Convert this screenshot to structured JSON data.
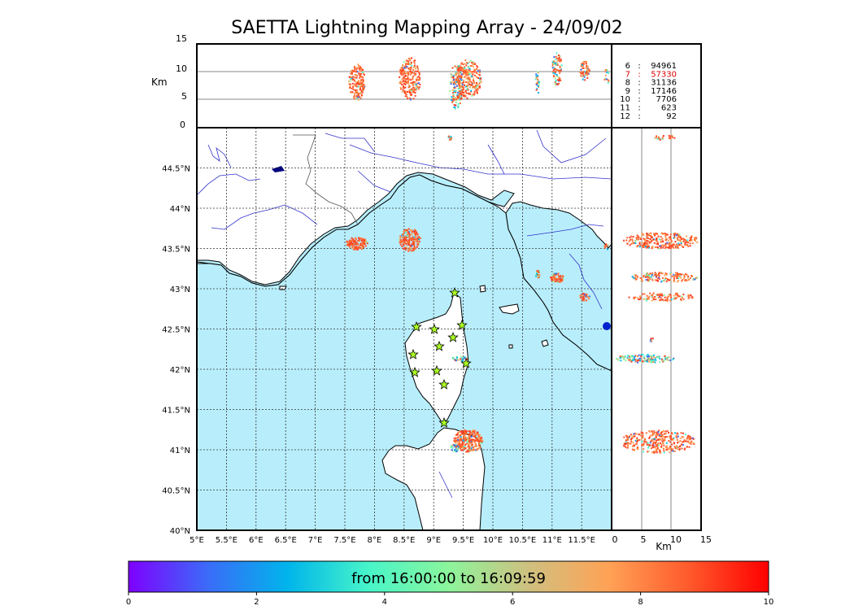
{
  "title": "SAETTA Lightning Mapping Array - 24/09/02",
  "alt_axis": {
    "unit_label": "Km",
    "ticks": [
      "0",
      "5",
      "10",
      "15"
    ]
  },
  "map": {
    "lat_ticks": [
      "40°N",
      "40.5°N",
      "41°N",
      "41.5°N",
      "42°N",
      "42.5°N",
      "43°N",
      "43.5°N",
      "44°N",
      "44.5°N"
    ],
    "lon_ticks": [
      "5°E",
      "5.5°E",
      "6°E",
      "6.5°E",
      "7°E",
      "7.5°E",
      "8°E",
      "8.5°E",
      "9°E",
      "9.5°E",
      "10°E",
      "10.5°E",
      "11°E",
      "11.5°E"
    ],
    "sea_color": "#b8eefc",
    "land_color": "#ffffff",
    "river_color": "#3333cc",
    "station_color": "#aaff22",
    "stations_count": 12
  },
  "stations_legend": [
    {
      "label": "6",
      "count": "94961",
      "highlight": false
    },
    {
      "label": "7",
      "count": "57330",
      "highlight": true
    },
    {
      "label": "8",
      "count": "31136",
      "highlight": false
    },
    {
      "label": "9",
      "count": "17146",
      "highlight": false
    },
    {
      "label": "10",
      "count": "7706",
      "highlight": false
    },
    {
      "label": "11",
      "count": "623",
      "highlight": false
    },
    {
      "label": "12",
      "count": "92",
      "highlight": false
    }
  ],
  "colorbar": {
    "label": "from 16:00:00 to 16:09:59",
    "ticks": [
      "0",
      "2",
      "4",
      "6",
      "8",
      "10"
    ],
    "colors": [
      "#7f00ff",
      "#3a6cf8",
      "#00b5eb",
      "#47f5c9",
      "#8cf59c",
      "#cfc07f",
      "#ffa256",
      "#ff5a2c",
      "#ff0000"
    ]
  }
}
